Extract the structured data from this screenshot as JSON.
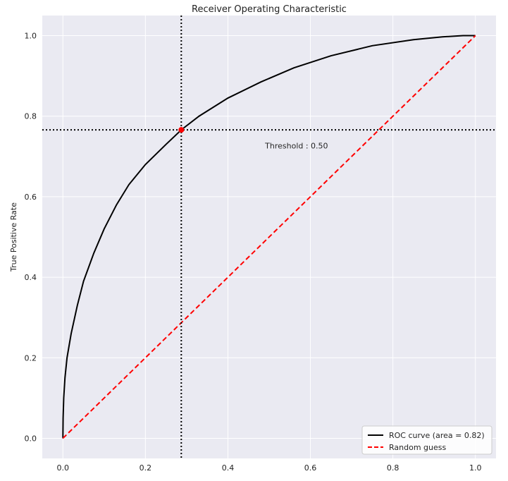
{
  "chart_data": {
    "type": "line",
    "title": "Receiver Operating Characteristic",
    "xlabel": "",
    "ylabel": "True Positive Rate",
    "xlim": [
      -0.05,
      1.05
    ],
    "ylim": [
      -0.05,
      1.05
    ],
    "x_ticks": [
      0.0,
      0.2,
      0.4,
      0.6,
      0.8,
      1.0
    ],
    "y_ticks": [
      0.0,
      0.2,
      0.4,
      0.6,
      0.8,
      1.0
    ],
    "x_tick_labels": [
      "0.0",
      "0.2",
      "0.4",
      "0.6",
      "0.8",
      "1.0"
    ],
    "y_tick_labels": [
      "0.0",
      "0.2",
      "0.4",
      "0.6",
      "0.8",
      "1.0"
    ],
    "grid": true,
    "legend_position": "lower-right",
    "series": [
      {
        "name": "ROC curve (area = 0.82)",
        "style": "solid",
        "color": "#000000",
        "x": [
          0.0,
          0.0005,
          0.002,
          0.005,
          0.01,
          0.02,
          0.035,
          0.05,
          0.075,
          0.1,
          0.13,
          0.16,
          0.2,
          0.25,
          0.287,
          0.33,
          0.4,
          0.48,
          0.56,
          0.65,
          0.75,
          0.85,
          0.92,
          0.97,
          1.0
        ],
        "y": [
          0.0,
          0.05,
          0.1,
          0.15,
          0.2,
          0.26,
          0.33,
          0.39,
          0.46,
          0.52,
          0.58,
          0.63,
          0.68,
          0.73,
          0.766,
          0.8,
          0.845,
          0.885,
          0.92,
          0.95,
          0.975,
          0.99,
          0.997,
          1.0,
          1.0
        ]
      },
      {
        "name": "Random guess",
        "style": "dashed",
        "color": "#ff0000",
        "x": [
          0.0,
          1.0
        ],
        "y": [
          0.0,
          1.0
        ]
      }
    ],
    "reference_lines": {
      "vertical_x": 0.287,
      "horizontal_y": 0.766
    },
    "marker": {
      "x": 0.287,
      "y": 0.766,
      "color": "#ff0000"
    },
    "annotation": {
      "text": "Threshold : 0.50",
      "x": 0.49,
      "y": 0.72
    },
    "colors": {
      "plot_background": "#eaeaf2",
      "grid": "#ffffff",
      "reference_line": "#000000"
    }
  }
}
